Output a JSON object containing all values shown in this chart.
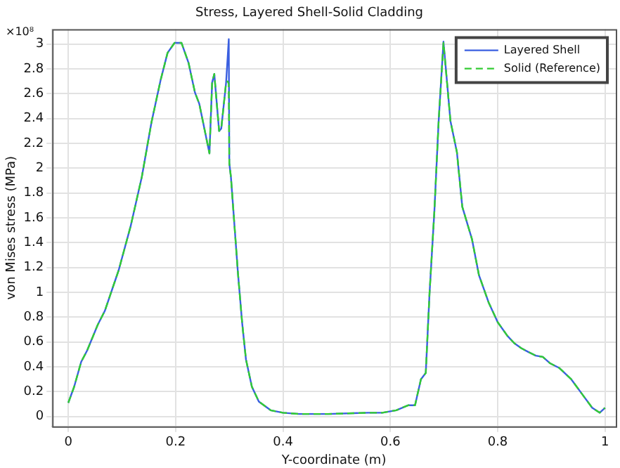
{
  "chart_data": {
    "type": "line",
    "title": "Stress, Layered Shell-Solid Cladding",
    "xlabel": "Y-coordinate (m)",
    "ylabel": "von Mises stress (MPa)",
    "annotations": [
      "×10⁸"
    ],
    "x": [
      0,
      0.011,
      0.024,
      0.035,
      0.055,
      0.068,
      0.094,
      0.116,
      0.137,
      0.155,
      0.172,
      0.185,
      0.198,
      0.211,
      0.224,
      0.236,
      0.244,
      0.263,
      0.268,
      0.272,
      0.281,
      0.285,
      0.294,
      0.297,
      0.299,
      0.3,
      0.303,
      0.316,
      0.324,
      0.331,
      0.342,
      0.355,
      0.377,
      0.4,
      0.43,
      0.484,
      0.558,
      0.585,
      0.611,
      0.633,
      0.646,
      0.657,
      0.666,
      0.673,
      0.682,
      0.69,
      0.699,
      0.712,
      0.724,
      0.734,
      0.752,
      0.765,
      0.783,
      0.8,
      0.818,
      0.831,
      0.844,
      0.857,
      0.871,
      0.884,
      0.897,
      0.915,
      0.937,
      0.959,
      0.976,
      0.99,
      1
    ],
    "series": [
      {
        "name": "Layered Shell",
        "color": "#3a5fe0",
        "line_style": "solid",
        "values": [
          0.11,
          0.24,
          0.44,
          0.53,
          0.74,
          0.85,
          1.18,
          1.53,
          1.93,
          2.37,
          2.71,
          2.93,
          3.01,
          3.01,
          2.85,
          2.61,
          2.52,
          2.12,
          2.69,
          2.76,
          2.3,
          2.32,
          2.69,
          2.9,
          3.04,
          2.04,
          1.93,
          1.16,
          0.75,
          0.46,
          0.24,
          0.12,
          0.05,
          0.03,
          0.02,
          0.02,
          0.03,
          0.03,
          0.05,
          0.09,
          0.09,
          0.3,
          0.35,
          0.99,
          1.65,
          2.38,
          3.02,
          2.38,
          2.13,
          1.69,
          1.43,
          1.14,
          0.92,
          0.76,
          0.65,
          0.59,
          0.55,
          0.52,
          0.49,
          0.48,
          0.43,
          0.39,
          0.3,
          0.17,
          0.07,
          0.03,
          0.07
        ]
      },
      {
        "name": "Solid (Reference)",
        "color": "#33cc33",
        "line_style": "dashed",
        "values": [
          0.11,
          0.24,
          0.44,
          0.53,
          0.74,
          0.85,
          1.18,
          1.53,
          1.93,
          2.37,
          2.71,
          2.93,
          3.01,
          3.01,
          2.85,
          2.61,
          2.52,
          2.12,
          2.69,
          2.76,
          2.3,
          2.32,
          2.69,
          2.7,
          2.68,
          2.04,
          1.93,
          1.16,
          0.75,
          0.46,
          0.24,
          0.12,
          0.05,
          0.03,
          0.02,
          0.02,
          0.03,
          0.03,
          0.05,
          0.09,
          0.09,
          0.3,
          0.35,
          0.99,
          1.65,
          2.38,
          3.01,
          2.38,
          2.13,
          1.69,
          1.43,
          1.14,
          0.92,
          0.76,
          0.65,
          0.59,
          0.55,
          0.52,
          0.49,
          0.48,
          0.43,
          0.39,
          0.3,
          0.17,
          0.07,
          0.03,
          0.07
        ]
      }
    ],
    "xlim": [
      -0.03,
      1.02
    ],
    "ylim": [
      -0.08,
      3.12
    ],
    "xticks": [
      0,
      0.2,
      0.4,
      0.6,
      0.8,
      1
    ],
    "yticks": [
      0,
      0.2,
      0.4,
      0.6,
      0.8,
      1,
      1.2,
      1.4,
      1.6,
      1.8,
      2,
      2.2,
      2.4,
      2.6,
      2.8,
      3
    ],
    "grid": true,
    "legend": "top right",
    "marker": "none"
  }
}
